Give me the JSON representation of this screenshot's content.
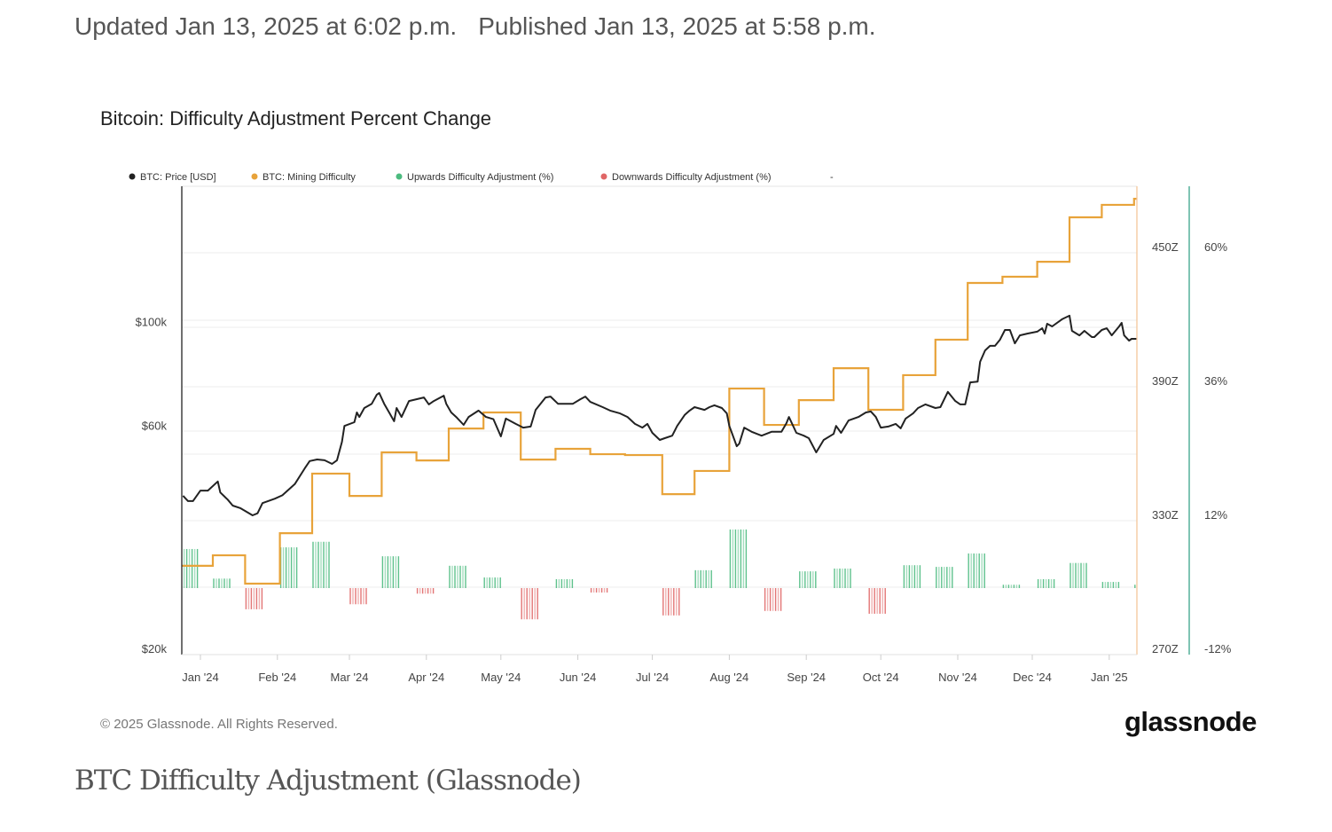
{
  "header": {
    "updated": "Updated Jan 13, 2025 at 6:02 p.m.",
    "published": "Published Jan 13, 2025 at 5:58 p.m."
  },
  "footer": {
    "copyright": "© 2025 Glassnode. All Rights Reserved.",
    "logo": "glassnode",
    "caption": "BTC Difficulty Adjustment (Glassnode)"
  },
  "colors": {
    "price": "#222222",
    "difficulty": "#e8a33a",
    "up": "#4cbb7f",
    "down": "#e06666",
    "pct_axis": "#3aa58a"
  },
  "chart_data": {
    "type": "line",
    "title": "Bitcoin: Difficulty Adjustment Percent Change",
    "legend": {
      "placement": "top-left",
      "items": [
        "BTC: Price [USD]",
        "BTC: Mining Difficulty",
        "Upwards Difficulty Adjustment (%)",
        "Downwards Difficulty Adjustment (%)",
        "-"
      ]
    },
    "x_ticks": [
      "Jan '24",
      "Feb '24",
      "Mar '24",
      "Apr '24",
      "May '24",
      "Jun '24",
      "Jul '24",
      "Aug '24",
      "Sep '24",
      "Oct '24",
      "Nov '24",
      "Dec '24",
      "Jan '25"
    ],
    "x_tick_dates": [
      "2024-01-01",
      "2024-02-01",
      "2024-03-01",
      "2024-04-01",
      "2024-05-01",
      "2024-06-01",
      "2024-07-01",
      "2024-08-01",
      "2024-09-01",
      "2024-10-01",
      "2024-11-01",
      "2024-12-01",
      "2025-01-01"
    ],
    "axes": {
      "price": {
        "scale": "log",
        "ticks": [
          {
            "v": 100000,
            "label": "$100k"
          },
          {
            "v": 60000,
            "label": "$60k"
          },
          {
            "v": 20000,
            "label": "$20k"
          }
        ]
      },
      "difficulty": {
        "scale": "linear",
        "range": [
          270,
          480
        ],
        "ticks": [
          {
            "v": 450,
            "label": "450Z"
          },
          {
            "v": 390,
            "label": "390Z"
          },
          {
            "v": 330,
            "label": "330Z"
          },
          {
            "v": 270,
            "label": "270Z"
          }
        ]
      },
      "percent": {
        "scale": "linear",
        "ticks": [
          {
            "v": 60,
            "label": "60%"
          },
          {
            "v": 36,
            "label": "36%"
          },
          {
            "v": 12,
            "label": "12%"
          },
          {
            "v": -12,
            "label": "-12%"
          }
        ]
      }
    },
    "grid": true,
    "series": [
      {
        "name": "BTC: Price [USD]",
        "type": "line",
        "points": [
          [
            "2023-12-25",
            42400
          ],
          [
            "2023-12-27",
            41300
          ],
          [
            "2023-12-29",
            41300
          ],
          [
            "2024-01-01",
            43500
          ],
          [
            "2024-01-04",
            43500
          ],
          [
            "2024-01-08",
            45500
          ],
          [
            "2024-01-09",
            43100
          ],
          [
            "2024-01-12",
            41600
          ],
          [
            "2024-01-14",
            40400
          ],
          [
            "2024-01-17",
            39900
          ],
          [
            "2024-01-22",
            38500
          ],
          [
            "2024-01-24",
            38900
          ],
          [
            "2024-01-26",
            40900
          ],
          [
            "2024-01-31",
            41800
          ],
          [
            "2024-02-03",
            42500
          ],
          [
            "2024-02-08",
            44900
          ],
          [
            "2024-02-12",
            48500
          ],
          [
            "2024-02-14",
            50300
          ],
          [
            "2024-02-17",
            50700
          ],
          [
            "2024-02-20",
            50500
          ],
          [
            "2024-02-23",
            49600
          ],
          [
            "2024-02-25",
            50500
          ],
          [
            "2024-02-27",
            55300
          ],
          [
            "2024-02-28",
            59800
          ],
          [
            "2024-03-03",
            60900
          ],
          [
            "2024-03-04",
            63900
          ],
          [
            "2024-03-05",
            62500
          ],
          [
            "2024-03-07",
            65300
          ],
          [
            "2024-03-10",
            66700
          ],
          [
            "2024-03-12",
            69700
          ],
          [
            "2024-03-13",
            70300
          ],
          [
            "2024-03-15",
            66700
          ],
          [
            "2024-03-17",
            63900
          ],
          [
            "2024-03-19",
            61200
          ],
          [
            "2024-03-20",
            65300
          ],
          [
            "2024-03-22",
            62500
          ],
          [
            "2024-03-25",
            67600
          ],
          [
            "2024-03-28",
            68200
          ],
          [
            "2024-03-31",
            68800
          ],
          [
            "2024-04-02",
            66500
          ],
          [
            "2024-04-04",
            67600
          ],
          [
            "2024-04-08",
            69400
          ],
          [
            "2024-04-09",
            66700
          ],
          [
            "2024-04-11",
            63900
          ],
          [
            "2024-04-13",
            62500
          ],
          [
            "2024-04-16",
            60100
          ],
          [
            "2024-04-18",
            62500
          ],
          [
            "2024-04-22",
            64500
          ],
          [
            "2024-04-25",
            62500
          ],
          [
            "2024-04-28",
            61800
          ],
          [
            "2024-05-01",
            56800
          ],
          [
            "2024-05-03",
            62000
          ],
          [
            "2024-05-07",
            60400
          ],
          [
            "2024-05-10",
            59300
          ],
          [
            "2024-05-13",
            59600
          ],
          [
            "2024-05-15",
            64700
          ],
          [
            "2024-05-19",
            68800
          ],
          [
            "2024-05-21",
            69100
          ],
          [
            "2024-05-24",
            66700
          ],
          [
            "2024-05-30",
            66700
          ],
          [
            "2024-06-02",
            68200
          ],
          [
            "2024-06-04",
            69100
          ],
          [
            "2024-06-06",
            67300
          ],
          [
            "2024-06-11",
            65600
          ],
          [
            "2024-06-14",
            64500
          ],
          [
            "2024-06-18",
            63600
          ],
          [
            "2024-06-21",
            62500
          ],
          [
            "2024-06-24",
            60400
          ],
          [
            "2024-06-27",
            59300
          ],
          [
            "2024-06-29",
            60400
          ],
          [
            "2024-07-01",
            57800
          ],
          [
            "2024-07-04",
            55800
          ],
          [
            "2024-07-06",
            56300
          ],
          [
            "2024-07-09",
            57000
          ],
          [
            "2024-07-11",
            59800
          ],
          [
            "2024-07-14",
            63100
          ],
          [
            "2024-07-16",
            64500
          ],
          [
            "2024-07-18",
            65600
          ],
          [
            "2024-07-22",
            64700
          ],
          [
            "2024-07-24",
            65600
          ],
          [
            "2024-07-26",
            66200
          ],
          [
            "2024-07-29",
            65300
          ],
          [
            "2024-07-31",
            63600
          ],
          [
            "2024-08-01",
            59800
          ],
          [
            "2024-08-04",
            54100
          ],
          [
            "2024-08-05",
            54800
          ],
          [
            "2024-08-07",
            59300
          ],
          [
            "2024-08-10",
            58100
          ],
          [
            "2024-08-14",
            57000
          ],
          [
            "2024-08-18",
            58100
          ],
          [
            "2024-08-22",
            58100
          ],
          [
            "2024-08-24",
            60600
          ],
          [
            "2024-08-25",
            62500
          ],
          [
            "2024-08-28",
            57800
          ],
          [
            "2024-08-31",
            57000
          ],
          [
            "2024-09-02",
            56300
          ],
          [
            "2024-09-05",
            52500
          ],
          [
            "2024-09-08",
            55800
          ],
          [
            "2024-09-12",
            57500
          ],
          [
            "2024-09-13",
            59800
          ],
          [
            "2024-09-15",
            57800
          ],
          [
            "2024-09-18",
            61400
          ],
          [
            "2024-09-22",
            62500
          ],
          [
            "2024-09-25",
            63900
          ],
          [
            "2024-09-27",
            64200
          ],
          [
            "2024-09-29",
            62500
          ],
          [
            "2024-10-01",
            59300
          ],
          [
            "2024-10-04",
            59600
          ],
          [
            "2024-10-07",
            60400
          ],
          [
            "2024-10-09",
            59100
          ],
          [
            "2024-10-11",
            62000
          ],
          [
            "2024-10-14",
            63600
          ],
          [
            "2024-10-16",
            65300
          ],
          [
            "2024-10-19",
            66500
          ],
          [
            "2024-10-23",
            65300
          ],
          [
            "2024-10-25",
            65600
          ],
          [
            "2024-10-28",
            70700
          ],
          [
            "2024-10-31",
            67600
          ],
          [
            "2024-11-02",
            66500
          ],
          [
            "2024-11-04",
            66500
          ],
          [
            "2024-11-06",
            74100
          ],
          [
            "2024-11-09",
            74400
          ],
          [
            "2024-11-10",
            82000
          ],
          [
            "2024-11-12",
            86700
          ],
          [
            "2024-11-14",
            88700
          ],
          [
            "2024-11-16",
            88700
          ],
          [
            "2024-11-18",
            91400
          ],
          [
            "2024-11-20",
            95900
          ],
          [
            "2024-11-22",
            95900
          ],
          [
            "2024-11-24",
            89800
          ],
          [
            "2024-11-26",
            93400
          ],
          [
            "2024-11-29",
            94200
          ],
          [
            "2024-12-03",
            95100
          ],
          [
            "2024-12-05",
            96700
          ],
          [
            "2024-12-06",
            94200
          ],
          [
            "2024-12-07",
            98900
          ],
          [
            "2024-12-09",
            97600
          ],
          [
            "2024-12-13",
            101100
          ],
          [
            "2024-12-16",
            102900
          ],
          [
            "2024-12-17",
            95500
          ],
          [
            "2024-12-20",
            93400
          ],
          [
            "2024-12-22",
            95500
          ],
          [
            "2024-12-25",
            92600
          ],
          [
            "2024-12-26",
            92600
          ],
          [
            "2024-12-29",
            95900
          ],
          [
            "2024-12-31",
            96700
          ],
          [
            "2025-01-02",
            93400
          ],
          [
            "2025-01-05",
            97600
          ],
          [
            "2025-01-06",
            99300
          ],
          [
            "2025-01-07",
            93400
          ],
          [
            "2025-01-09",
            91000
          ],
          [
            "2025-01-10",
            91800
          ],
          [
            "2025-01-12",
            91800
          ]
        ]
      },
      {
        "name": "BTC: Mining Difficulty",
        "type": "step",
        "points": [
          [
            "2023-12-24",
            307.0
          ],
          [
            "2024-01-06",
            311.7
          ],
          [
            "2024-01-19",
            299.0
          ],
          [
            "2024-02-02",
            321.6
          ],
          [
            "2024-02-15",
            348.3
          ],
          [
            "2024-03-01",
            338.3
          ],
          [
            "2024-03-14",
            357.8
          ],
          [
            "2024-03-28",
            354.2
          ],
          [
            "2024-04-10",
            368.5
          ],
          [
            "2024-04-24",
            375.7
          ],
          [
            "2024-05-09",
            354.6
          ],
          [
            "2024-05-23",
            359.4
          ],
          [
            "2024-06-06",
            357.0
          ],
          [
            "2024-06-20",
            356.6
          ],
          [
            "2024-07-05",
            339.1
          ],
          [
            "2024-07-18",
            349.5
          ],
          [
            "2024-08-01",
            386.4
          ],
          [
            "2024-08-15",
            370.1
          ],
          [
            "2024-08-29",
            381.2
          ],
          [
            "2024-09-12",
            395.5
          ],
          [
            "2024-09-26",
            376.9
          ],
          [
            "2024-10-10",
            392.4
          ],
          [
            "2024-10-23",
            408.3
          ],
          [
            "2024-11-05",
            433.7
          ],
          [
            "2024-11-19",
            436.5
          ],
          [
            "2024-12-03",
            443.2
          ],
          [
            "2024-12-16",
            463.1
          ],
          [
            "2024-12-29",
            468.7
          ],
          [
            "2025-01-11",
            471.4
          ]
        ]
      },
      {
        "name": "Difficulty Adjustment (%)",
        "type": "bar",
        "points": [
          [
            "2023-12-24",
            7.0
          ],
          [
            "2024-01-06",
            1.7
          ],
          [
            "2024-01-19",
            -3.8
          ],
          [
            "2024-02-02",
            7.3
          ],
          [
            "2024-02-15",
            8.3
          ],
          [
            "2024-03-01",
            -2.9
          ],
          [
            "2024-03-14",
            5.7
          ],
          [
            "2024-03-28",
            -1.0
          ],
          [
            "2024-04-10",
            4.0
          ],
          [
            "2024-04-24",
            1.9
          ],
          [
            "2024-05-09",
            -5.6
          ],
          [
            "2024-05-23",
            1.6
          ],
          [
            "2024-06-06",
            -0.8
          ],
          [
            "2024-07-05",
            -4.9
          ],
          [
            "2024-07-18",
            3.2
          ],
          [
            "2024-08-01",
            10.5
          ],
          [
            "2024-08-15",
            -4.1
          ],
          [
            "2024-08-29",
            3.0
          ],
          [
            "2024-09-12",
            3.5
          ],
          [
            "2024-09-26",
            -4.6
          ],
          [
            "2024-10-10",
            4.1
          ],
          [
            "2024-10-23",
            3.8
          ],
          [
            "2024-11-05",
            6.2
          ],
          [
            "2024-11-19",
            0.6
          ],
          [
            "2024-12-03",
            1.6
          ],
          [
            "2024-12-16",
            4.5
          ],
          [
            "2024-12-29",
            1.1
          ],
          [
            "2025-01-11",
            0.6
          ]
        ]
      }
    ]
  }
}
